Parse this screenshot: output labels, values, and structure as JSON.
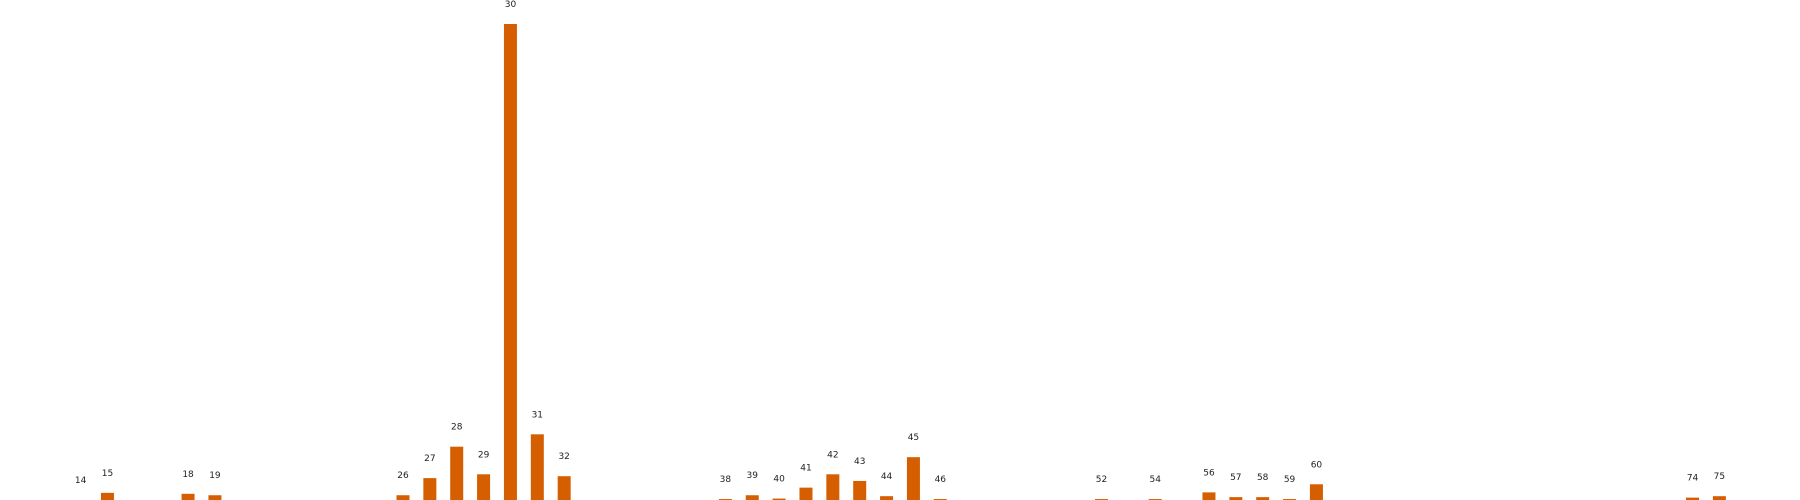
{
  "chart_data": {
    "type": "bar",
    "title": "",
    "xlabel": "",
    "ylabel": "",
    "grid": false,
    "bar_color": "#d55e00",
    "categories": [
      "14",
      "15",
      "18",
      "19",
      "26",
      "27",
      "28",
      "29",
      "30",
      "31",
      "32",
      "38",
      "39",
      "40",
      "41",
      "42",
      "43",
      "44",
      "45",
      "46",
      "52",
      "54",
      "56",
      "57",
      "58",
      "59",
      "60",
      "74",
      "75"
    ],
    "category_positions": [
      14,
      15,
      18,
      19,
      26,
      27,
      28,
      29,
      30,
      31,
      32,
      38,
      39,
      40,
      41,
      42,
      43,
      44,
      45,
      46,
      52,
      54,
      56,
      57,
      58,
      59,
      60,
      74,
      75
    ],
    "values": [
      0.0,
      1.5,
      1.3,
      1.0,
      1.0,
      4.6,
      11.2,
      5.4,
      100.0,
      13.8,
      5.0,
      0.2,
      1.0,
      0.3,
      2.6,
      5.4,
      4.0,
      0.8,
      9.0,
      0.2,
      0.2,
      0.2,
      1.6,
      0.6,
      0.6,
      0.2,
      3.3,
      0.5,
      0.8
    ],
    "xlim": [
      11,
      78
    ],
    "ylim": [
      0,
      100
    ]
  }
}
